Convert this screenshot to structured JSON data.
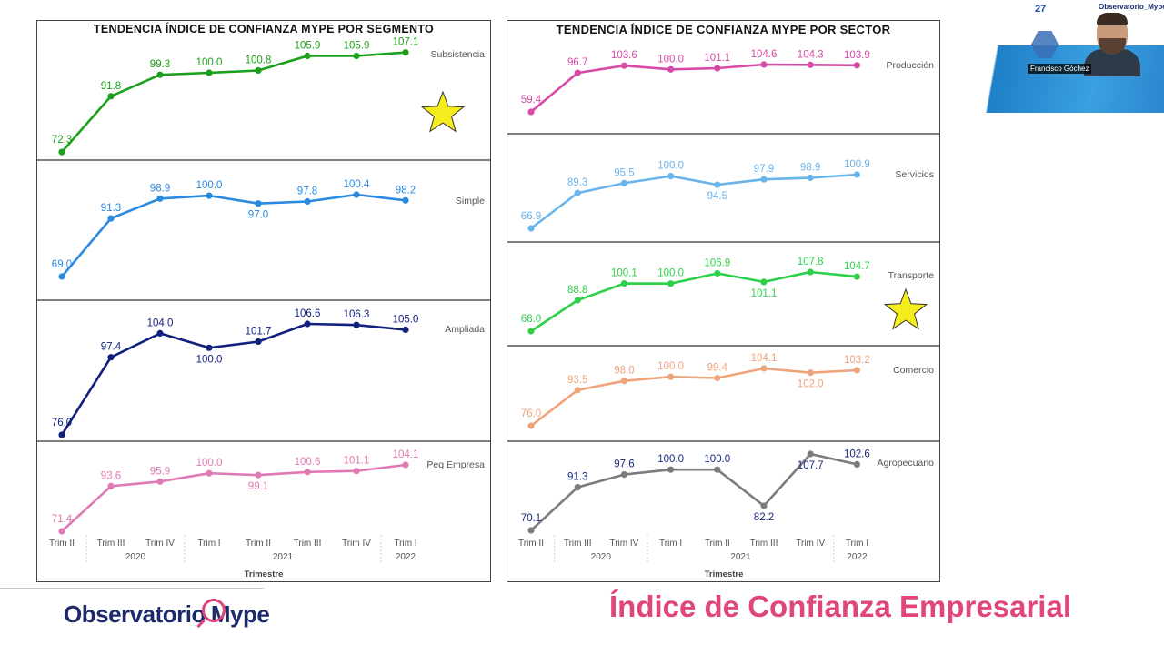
{
  "left_title": "TENDENCIA ÍNDICE DE CONFIANZA MYPE POR SEGMENTO",
  "right_title": "TENDENCIA ÍNDICE DE CONFIANZA MYPE POR SECTOR",
  "footer": {
    "logo_text": "Observatorio Mype",
    "logo_part1": "Observatorio",
    "logo_part2": "Mype",
    "title": "Índice de Confianza Empresarial"
  },
  "video": {
    "presenter_name": "Francisco Góchez",
    "corner_logo": "27",
    "corner_brand": "Observatorio_Mype"
  },
  "x_axis": {
    "quarters": [
      "Trim II",
      "Trim III",
      "Trim IV",
      "Trim I",
      "Trim II",
      "Trim III",
      "Trim IV",
      "Trim I"
    ],
    "years": [
      {
        "label": "2020",
        "from": 1,
        "to": 2
      },
      {
        "label": "2021",
        "from": 3,
        "to": 6
      },
      {
        "label": "2022",
        "from": 7,
        "to": 7
      }
    ],
    "title": "Trimestre"
  },
  "colors": {
    "subsistencia": "#1aa01a",
    "simple": "#2a8ae0",
    "ampliada": "#12207e",
    "peq_empresa": "#e07ab4",
    "produccion": "#d84aa8",
    "servicios": "#6ab4ec",
    "transporte": "#2ed04a",
    "comercio": "#f0a47c",
    "agropecuario": "#7c7c7c",
    "star": "#f4ec1c"
  },
  "chart_data": [
    {
      "type": "line",
      "group": "segment",
      "title": "TENDENCIA ÍNDICE DE CONFIANZA MYPE POR SEGMENTO",
      "xlabel": "Trimestre",
      "categories": [
        "Trim II 2020",
        "Trim III 2020",
        "Trim IV 2020",
        "Trim I 2021",
        "Trim II 2021",
        "Trim III 2021",
        "Trim IV 2021",
        "Trim I 2022"
      ],
      "series": [
        {
          "name": "Subsistencia",
          "values": [
            72.3,
            91.8,
            99.3,
            100.0,
            100.8,
            105.9,
            105.9,
            107.1
          ],
          "labels": [
            "72.3",
            "91.8",
            "99.3",
            "100.0",
            "100.8",
            "105.9",
            "105.9",
            "107.1"
          ],
          "star": true
        },
        {
          "name": "Simple",
          "values": [
            69.0,
            91.3,
            98.9,
            100.0,
            97.0,
            97.8,
            100.4,
            98.2
          ],
          "labels": [
            "69.0",
            "91.3",
            "98.9",
            "100.0",
            "97.0",
            "97.8",
            "100.4",
            "98.2"
          ],
          "star": false
        },
        {
          "name": "Ampliada",
          "values": [
            76.0,
            97.4,
            104.0,
            100.0,
            101.7,
            106.6,
            106.3,
            105.0
          ],
          "labels": [
            "76.0",
            "97.4",
            "104.0",
            "100.0",
            "101.7",
            "106.6",
            "106.3",
            "105.0"
          ],
          "star": false
        },
        {
          "name": "Peq Empresa",
          "values": [
            71.4,
            93.6,
            95.9,
            100.0,
            99.1,
            100.6,
            101.1,
            104.1
          ],
          "labels": [
            "71.4",
            "93.6",
            "95.9",
            "100.0",
            "99.1",
            "100.6",
            "101.1",
            "104.1"
          ],
          "star": false
        }
      ]
    },
    {
      "type": "line",
      "group": "sector",
      "title": "TENDENCIA ÍNDICE DE CONFIANZA MYPE POR SECTOR",
      "xlabel": "Trimestre",
      "categories": [
        "Trim II 2020",
        "Trim III 2020",
        "Trim IV 2020",
        "Trim I 2021",
        "Trim II 2021",
        "Trim III 2021",
        "Trim IV 2021",
        "Trim I 2022"
      ],
      "series": [
        {
          "name": "Producción",
          "values": [
            59.4,
            96.7,
            103.6,
            100.0,
            101.1,
            104.6,
            104.3,
            103.9
          ],
          "labels": [
            "59.4",
            "96.7",
            "103.6",
            "100.0",
            "101.1",
            "104.6",
            "104.3",
            "103.9"
          ],
          "star": false
        },
        {
          "name": "Servicios",
          "values": [
            66.9,
            89.3,
            95.5,
            100.0,
            94.5,
            97.9,
            98.9,
            100.9
          ],
          "labels": [
            "66.9",
            "89.3",
            "95.5",
            "100.0",
            "94.5",
            "97.9",
            "98.9",
            "100.9"
          ],
          "star": false
        },
        {
          "name": "Transporte",
          "values": [
            68.0,
            88.8,
            100.1,
            100.0,
            106.9,
            101.1,
            107.8,
            104.7
          ],
          "labels": [
            "68.0",
            "88.8",
            "100.1",
            "100.0",
            "106.9",
            "101.1",
            "107.8",
            "104.7"
          ],
          "star": true
        },
        {
          "name": "Comercio",
          "values": [
            76.0,
            93.5,
            98.0,
            100.0,
            99.4,
            104.1,
            102.0,
            103.2
          ],
          "labels": [
            "76.0",
            "93.5",
            "98.0",
            "100.0",
            "99.4",
            "104.1",
            "102.0",
            "103.2"
          ],
          "star": false
        },
        {
          "name": "Agropecuario",
          "values": [
            70.1,
            91.3,
            97.6,
            100.0,
            100.0,
            82.2,
            107.7,
            102.6
          ],
          "labels": [
            "70.1",
            "91.3",
            "97.6",
            "100.0",
            "100.0",
            "82.2",
            "107.7",
            "102.6"
          ],
          "star": false
        }
      ]
    }
  ]
}
